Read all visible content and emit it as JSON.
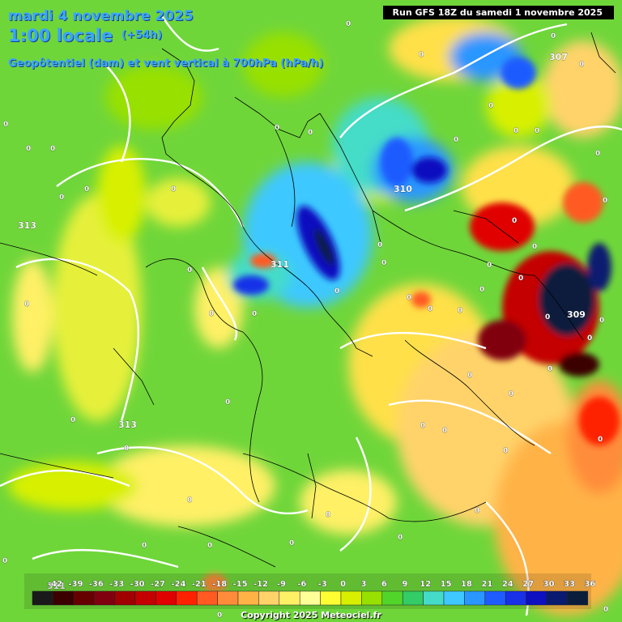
{
  "header": {
    "date": "mardi 4 novembre 2025",
    "time": "1:00 locale",
    "lead": "(+54h)",
    "subtitle": "Geopôtentiel (dam) et vent vertical à 700hPa (hPa/h)"
  },
  "run_label": "Run GFS 18Z du samedi 1 novembre 2025",
  "copyright": "Copyright 2025 Meteociel.fr",
  "legend": {
    "levels": [
      "-42",
      "-39",
      "-36",
      "-33",
      "-30",
      "-27",
      "-24",
      "-21",
      "-18",
      "-15",
      "-12",
      "-9",
      "-6",
      "-3",
      "0",
      "3",
      "6",
      "9",
      "12",
      "15",
      "18",
      "21",
      "24",
      "27",
      "30",
      "33",
      "36"
    ],
    "colors": [
      "#1a1a1a",
      "#3b0000",
      "#660000",
      "#800010",
      "#a00000",
      "#c40000",
      "#e00000",
      "#ff2200",
      "#ff5a22",
      "#ff8c3a",
      "#ffb347",
      "#ffd36a",
      "#fff066",
      "#ffff99",
      "#ffff33",
      "#d8f000",
      "#98e000",
      "#52d52a",
      "#33cc66",
      "#44dcc8",
      "#3ec8ff",
      "#2a96ff",
      "#1f5cff",
      "#1730e8",
      "#0d10c0",
      "#0a1a70",
      "#0a1e3c"
    ]
  },
  "contour_labels": {
    "geopotential": [
      "313",
      "311",
      "310",
      "309",
      "307",
      "313",
      "311"
    ],
    "vertical_wind_zero": "0"
  },
  "colors": {
    "background_green": "#6fd63a",
    "title_blue": "#3aa6ff",
    "contour_white": "#ffffff"
  }
}
